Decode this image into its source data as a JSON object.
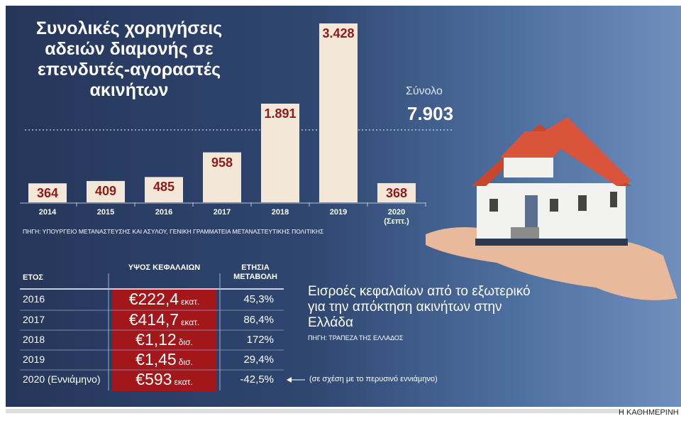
{
  "chart_data": {
    "type": "bar",
    "title": "Συνολικές χορηγήσεις αδειών διαμονής σε επενδυτές-αγοραστές ακινήτων",
    "categories": [
      "2014",
      "2015",
      "2016",
      "2017",
      "2018",
      "2019",
      "2020 (Σεπτ.)"
    ],
    "values": [
      364,
      409,
      485,
      958,
      1891,
      3428,
      368
    ],
    "value_labels": [
      "364",
      "409",
      "485",
      "958",
      "1.891",
      "3.428",
      "368"
    ],
    "color": "#f3e7d8",
    "label_color": "#8e1b1b",
    "source": "ΠΗΓΗ: ΥΠΟΥΡΓΕΙΟ ΜΕΤΑΝΑΣΤΕΥΣΗΣ ΚΑΙ ΑΣΥΛΟΥ, ΓΕΝΙΚΗ ΓΡΑΜΜΑΤΕΙΑ ΜΕΤΑΝΑΣΤΕΥΤΙΚΗΣ ΠΟΛΙΤΙΚΗΣ"
  },
  "summary": {
    "label": "Σύνολο",
    "text": "7.903"
  },
  "table": {
    "title": "Εισροές κεφαλαίων από το εξωτερικό για την απόκτηση ακινήτων στην Ελλάδα",
    "source": "ΠΗΓΗ: ΤΡΑΠΕΖΑ ΤΗΣ ΕΛΛΑΔΟΣ",
    "headers": [
      "ΕΤΟΣ",
      "ΥΨΟΣ ΚΕΦΑΛΑΙΩΝ",
      "ΕΤΗΣΙΑ ΜΕΤΑΒΟΛΗ"
    ],
    "rows": [
      [
        "2016",
        "€222,4",
        "εκατ.",
        "45,3%"
      ],
      [
        "2017",
        "€414,7",
        "εκατ.",
        "86,4%"
      ],
      [
        "2018",
        "€1,12",
        "δισ.",
        "172%"
      ],
      [
        "2019",
        "€1,45",
        "δισ.",
        "29,4%"
      ],
      [
        "2020 (Εννιάμηνο)",
        "€593",
        "εκατ.",
        "-42,5%"
      ]
    ],
    "note": "(σε σχέση με το περυσινό εννιάμηνο)"
  },
  "footer": {
    "brand": "Η ΚΑΘΗΜΕΡΙΝΗ"
  }
}
